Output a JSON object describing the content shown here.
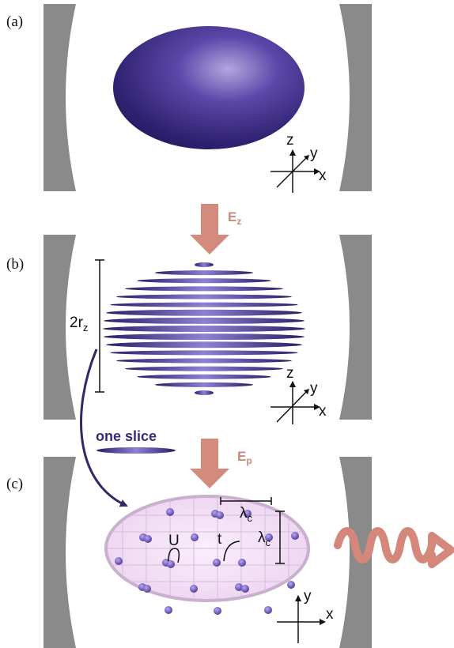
{
  "panels": {
    "a": "(a)",
    "b": "(b)",
    "c": "(c)"
  },
  "axes": {
    "x": "x",
    "y": "y",
    "z": "z"
  },
  "arrows": {
    "first": {
      "main": "E",
      "sub": "z"
    },
    "second": {
      "main": "E",
      "sub": "p"
    }
  },
  "radius_label": {
    "main": "2r",
    "sub": "z"
  },
  "slice_label": "one slice",
  "lattice": {
    "interaction": "U",
    "tunneling": "t",
    "spacing": {
      "main": "λ",
      "sub": "c"
    }
  },
  "colors": {
    "mirror": "#8a8a8a",
    "cloud": "#3b2a7e",
    "cloud_highlight": "#a89ad8",
    "field_arrow": "#d38b7e",
    "field_text": "#c98a7e",
    "slice_text": "#3a2a78",
    "slice_arrow": "#342668",
    "lattice_fill": "#f0dcf3",
    "lattice_edge": "#c9b0cf",
    "atom": "#6a52b8",
    "wave": "#d4877a"
  },
  "icons": {
    "field_arrow": "down-arrow-icon",
    "emission": "wavy-arrow-icon"
  }
}
